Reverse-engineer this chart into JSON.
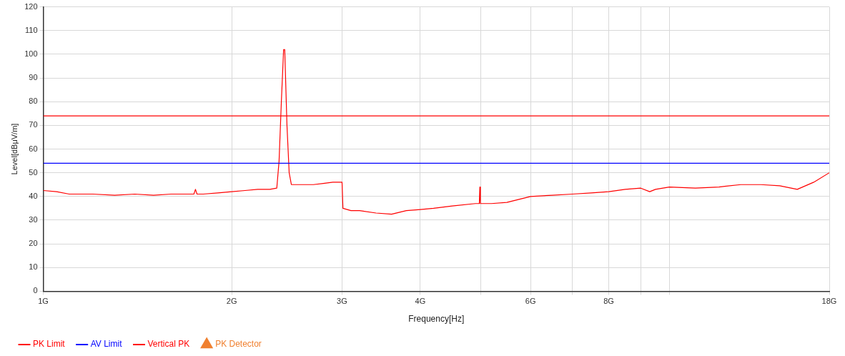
{
  "chart_data": {
    "type": "line",
    "xlabel": "Frequency[Hz]",
    "ylabel": "Level[dBμV/m]",
    "log": "x",
    "grid": true,
    "legend": "bottom left",
    "xlim": [
      1,
      18
    ],
    "ylim": [
      0,
      120
    ],
    "xticks": [
      {
        "value": 1,
        "label": "1G"
      },
      {
        "value": 2,
        "label": "2G"
      },
      {
        "value": 3,
        "label": "3G"
      },
      {
        "value": 4,
        "label": "4G"
      },
      {
        "value": 5,
        "label": null
      },
      {
        "value": 6,
        "label": "6G"
      },
      {
        "value": 7,
        "label": null
      },
      {
        "value": 8,
        "label": "8G"
      },
      {
        "value": 9,
        "label": null
      },
      {
        "value": 10,
        "label": null
      },
      {
        "value": 18,
        "label": "18G"
      }
    ],
    "yticks": [
      0,
      10,
      20,
      30,
      40,
      50,
      60,
      70,
      80,
      90,
      100,
      110,
      120
    ],
    "series": [
      {
        "name": "PK Limit",
        "color": "#ff0000",
        "x": [
          1,
          18
        ],
        "values": [
          74,
          74
        ]
      },
      {
        "name": "AV Limit",
        "color": "#0000ff",
        "x": [
          1,
          18
        ],
        "values": [
          54,
          54
        ]
      },
      {
        "name": "Vertical PK",
        "color": "#ff0000",
        "x": [
          1,
          1.05,
          1.1,
          1.2,
          1.3,
          1.4,
          1.5,
          1.6,
          1.7,
          1.74,
          1.75,
          1.76,
          1.8,
          1.9,
          2.0,
          2.1,
          2.2,
          2.3,
          2.36,
          2.38,
          2.4,
          2.42,
          2.43,
          2.45,
          2.47,
          2.49,
          2.6,
          2.7,
          2.8,
          2.9,
          2.99,
          3.0,
          3.01,
          3.1,
          3.2,
          3.4,
          3.6,
          3.8,
          4.0,
          4.2,
          4.5,
          4.9,
          4.97,
          4.98,
          4.99,
          5.2,
          5.5,
          6.0,
          6.5,
          7.0,
          7.5,
          8.0,
          8.5,
          9.0,
          9.3,
          9.5,
          10,
          11,
          12,
          13,
          14,
          15,
          16,
          17,
          18
        ],
        "values": [
          42.5,
          42,
          41,
          41,
          40.5,
          41,
          40.5,
          41,
          41,
          41,
          43,
          41,
          41,
          41.5,
          42,
          42.5,
          43,
          43,
          43.5,
          55,
          80,
          102,
          102,
          70,
          50,
          45,
          45,
          45,
          45.5,
          46,
          46,
          46,
          35,
          34,
          34,
          33,
          32.5,
          34,
          34.5,
          35,
          36,
          37,
          37,
          44,
          37,
          37,
          37.5,
          40,
          40.5,
          41,
          41.5,
          42,
          43,
          43.5,
          42,
          43,
          44,
          43.5,
          44,
          45,
          45,
          44.5,
          43,
          46,
          50
        ]
      },
      {
        "name": "PK Detector",
        "type": "scatter",
        "color": "#f08030",
        "marker": "triangle"
      }
    ]
  }
}
